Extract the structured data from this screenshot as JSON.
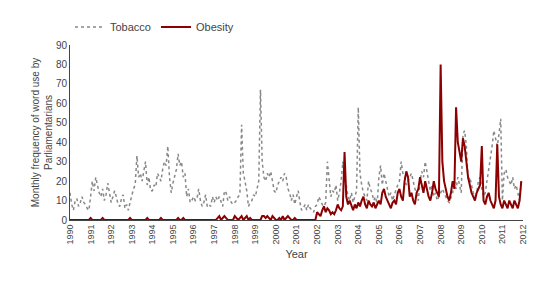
{
  "chart_data": {
    "type": "line",
    "xlabel": "Year",
    "ylabel": "Monthly frequency of word use by\nParliamentarians",
    "xlim": [
      1990,
      2012
    ],
    "xticks": [
      1990,
      1991,
      1992,
      1993,
      1994,
      1995,
      1996,
      1997,
      1998,
      1999,
      2000,
      2001,
      2002,
      2003,
      2004,
      2005,
      2006,
      2007,
      2008,
      2009,
      2010,
      2011,
      2012
    ],
    "ylim": [
      0,
      90
    ],
    "yticks": [
      0,
      10,
      20,
      30,
      40,
      50,
      60,
      70,
      80,
      90
    ],
    "grid": false,
    "legend": "upper left",
    "x": [
      1990,
      1990.083333,
      1990.166667,
      1990.25,
      1990.333333,
      1990.416667,
      1990.5,
      1990.583333,
      1990.666667,
      1990.75,
      1990.833333,
      1990.916667,
      1991,
      1991.083333,
      1991.166667,
      1991.25,
      1991.333333,
      1991.416667,
      1991.5,
      1991.583333,
      1991.666667,
      1991.75,
      1991.833333,
      1991.916667,
      1992,
      1992.083333,
      1992.166667,
      1992.25,
      1992.333333,
      1992.416667,
      1992.5,
      1992.583333,
      1992.666667,
      1992.75,
      1992.833333,
      1992.916667,
      1993,
      1993.083333,
      1993.166667,
      1993.25,
      1993.333333,
      1993.416667,
      1993.5,
      1993.583333,
      1993.666667,
      1993.75,
      1993.833333,
      1993.916667,
      1994,
      1994.083333,
      1994.166667,
      1994.25,
      1994.333333,
      1994.416667,
      1994.5,
      1994.583333,
      1994.666667,
      1994.75,
      1994.833333,
      1994.916667,
      1995,
      1995.083333,
      1995.166667,
      1995.25,
      1995.333333,
      1995.416667,
      1995.5,
      1995.583333,
      1995.666667,
      1995.75,
      1995.833333,
      1995.916667,
      1996,
      1996.083333,
      1996.166667,
      1996.25,
      1996.333333,
      1996.416667,
      1996.5,
      1996.583333,
      1996.666667,
      1996.75,
      1996.833333,
      1996.916667,
      1997,
      1997.083333,
      1997.166667,
      1997.25,
      1997.333333,
      1997.416667,
      1997.5,
      1997.583333,
      1997.666667,
      1997.75,
      1997.833333,
      1997.916667,
      1998,
      1998.083333,
      1998.166667,
      1998.25,
      1998.333333,
      1998.416667,
      1998.5,
      1998.583333,
      1998.666667,
      1998.75,
      1998.833333,
      1998.916667,
      1999,
      1999.083333,
      1999.166667,
      1999.25,
      1999.333333,
      1999.416667,
      1999.5,
      1999.583333,
      1999.666667,
      1999.75,
      1999.833333,
      1999.916667,
      2000,
      2000.083333,
      2000.166667,
      2000.25,
      2000.333333,
      2000.416667,
      2000.5,
      2000.583333,
      2000.666667,
      2000.75,
      2000.833333,
      2000.916667,
      2001,
      2001.083333,
      2001.166667,
      2001.25,
      2001.333333,
      2001.416667,
      2001.5,
      2001.583333,
      2001.666667,
      2001.75,
      2001.833333,
      2001.916667,
      2002,
      2002.083333,
      2002.166667,
      2002.25,
      2002.333333,
      2002.416667,
      2002.5,
      2002.583333,
      2002.666667,
      2002.75,
      2002.833333,
      2002.916667,
      2003,
      2003.083333,
      2003.166667,
      2003.25,
      2003.333333,
      2003.416667,
      2003.5,
      2003.583333,
      2003.666667,
      2003.75,
      2003.833333,
      2003.916667,
      2004,
      2004.083333,
      2004.166667,
      2004.25,
      2004.333333,
      2004.416667,
      2004.5,
      2004.583333,
      2004.666667,
      2004.75,
      2004.833333,
      2004.916667,
      2005,
      2005.083333,
      2005.166667,
      2005.25,
      2005.333333,
      2005.416667,
      2005.5,
      2005.583333,
      2005.666667,
      2005.75,
      2005.833333,
      2005.916667,
      2006,
      2006.083333,
      2006.166667,
      2006.25,
      2006.333333,
      2006.416667,
      2006.5,
      2006.583333,
      2006.666667,
      2006.75,
      2006.833333,
      2006.916667,
      2007,
      2007.083333,
      2007.166667,
      2007.25,
      2007.333333,
      2007.416667,
      2007.5,
      2007.583333,
      2007.666667,
      2007.75,
      2007.833333,
      2007.916667,
      2008,
      2008.083333,
      2008.166667,
      2008.25,
      2008.333333,
      2008.416667,
      2008.5,
      2008.583333,
      2008.666667,
      2008.75,
      2008.833333,
      2008.916667,
      2009,
      2009.083333,
      2009.166667,
      2009.25,
      2009.333333,
      2009.416667,
      2009.5,
      2009.583333,
      2009.666667,
      2009.75,
      2009.833333,
      2009.916667,
      2010,
      2010.083333,
      2010.166667,
      2010.25,
      2010.333333,
      2010.416667,
      2010.5,
      2010.583333,
      2010.666667,
      2010.75,
      2010.833333,
      2010.916667,
      2011,
      2011.083333,
      2011.166667,
      2011.25,
      2011.333333,
      2011.416667,
      2011.5,
      2011.583333,
      2011.666667,
      2011.75,
      2011.833333,
      2011.916667
    ],
    "series": [
      {
        "name": "Tobacco",
        "color": "#888888",
        "line_style": "dotted",
        "values": [
          14,
          8,
          5,
          10,
          11,
          7,
          9,
          12,
          9,
          8,
          6,
          5,
          12,
          20,
          15,
          22,
          18,
          14,
          12,
          16,
          10,
          13,
          19,
          14,
          9,
          12,
          15,
          12,
          8,
          7,
          11,
          13,
          6,
          8,
          5,
          9,
          13,
          16,
          18,
          33,
          22,
          24,
          20,
          25,
          30,
          18,
          22,
          15,
          15,
          18,
          17,
          24,
          22,
          20,
          26,
          30,
          28,
          38,
          22,
          14,
          19,
          22,
          26,
          34,
          28,
          30,
          22,
          24,
          12,
          16,
          9,
          10,
          12,
          10,
          11,
          16,
          10,
          7,
          9,
          13,
          7,
          8,
          7,
          12,
          9,
          12,
          10,
          12,
          9,
          7,
          15,
          14,
          10,
          12,
          9,
          8,
          9,
          10,
          12,
          13,
          49,
          24,
          20,
          15,
          7,
          9,
          10,
          13,
          12,
          16,
          20,
          67,
          30,
          22,
          20,
          24,
          22,
          25,
          20,
          15,
          14,
          18,
          20,
          22,
          20,
          24,
          22,
          16,
          14,
          10,
          13,
          8,
          12,
          15,
          9,
          5,
          6,
          8,
          5,
          8,
          6,
          5,
          4,
          7,
          8,
          12,
          10,
          8,
          7,
          9,
          30,
          22,
          12,
          15,
          14,
          18,
          10,
          14,
          20,
          30,
          22,
          18,
          12,
          10,
          14,
          9,
          12,
          15,
          58,
          24,
          18,
          14,
          12,
          10,
          20,
          16,
          14,
          10,
          12,
          8,
          22,
          28,
          18,
          24,
          20,
          16,
          12,
          14,
          10,
          13,
          16,
          18,
          20,
          30,
          24,
          22,
          18,
          20,
          22,
          24,
          20,
          16,
          14,
          10,
          20,
          25,
          22,
          30,
          25,
          20,
          15,
          18,
          12,
          14,
          10,
          12,
          14,
          16,
          14,
          12,
          10,
          9,
          12,
          14,
          20,
          16,
          22,
          18,
          14,
          44,
          46,
          38,
          20,
          22,
          18,
          14,
          12,
          14,
          20,
          22,
          16,
          12,
          14,
          20,
          24,
          30,
          38,
          46,
          42,
          38,
          44,
          52,
          10,
          24,
          26,
          22,
          20,
          18,
          22,
          16,
          18,
          14,
          10,
          20
        ]
      },
      {
        "name": "Obesity",
        "color": "#8B0000",
        "line_style": "solid",
        "values": [
          0,
          0,
          0,
          0,
          0,
          0,
          0,
          0,
          0,
          0,
          0,
          0,
          1,
          0,
          0,
          0,
          0,
          0,
          0,
          1,
          0,
          0,
          0,
          0,
          0,
          0,
          0,
          0,
          0,
          0,
          0,
          0,
          0,
          0,
          0,
          1,
          0,
          0,
          0,
          0,
          0,
          0,
          0,
          0,
          0,
          1,
          0,
          0,
          0,
          0,
          0,
          0,
          0,
          1,
          0,
          0,
          0,
          0,
          0,
          0,
          0,
          0,
          0,
          1,
          0,
          0,
          1,
          0,
          0,
          0,
          0,
          0,
          0,
          0,
          0,
          0,
          0,
          0,
          0,
          0,
          0,
          0,
          0,
          0,
          0,
          0,
          1,
          2,
          0,
          1,
          2,
          1,
          0,
          0,
          0,
          0,
          2,
          1,
          0,
          1,
          2,
          0,
          1,
          2,
          0,
          1,
          0,
          0,
          0,
          0,
          0,
          0,
          2,
          2,
          1,
          2,
          1,
          0,
          2,
          1,
          0,
          0,
          1,
          0,
          2,
          0,
          1,
          2,
          1,
          0,
          0,
          1,
          0,
          0,
          0,
          0,
          0,
          0,
          0,
          0,
          0,
          0,
          0,
          0,
          4,
          3,
          2,
          5,
          7,
          4,
          6,
          5,
          3,
          4,
          3,
          5,
          8,
          6,
          5,
          7,
          35,
          12,
          8,
          10,
          7,
          5,
          8,
          6,
          9,
          7,
          10,
          12,
          8,
          6,
          10,
          8,
          7,
          9,
          6,
          8,
          10,
          8,
          14,
          16,
          12,
          10,
          8,
          6,
          9,
          10,
          8,
          14,
          16,
          12,
          10,
          20,
          25,
          22,
          12,
          14,
          10,
          8,
          14,
          16,
          22,
          18,
          14,
          20,
          16,
          12,
          10,
          14,
          20,
          16,
          14,
          12,
          80,
          30,
          20,
          16,
          12,
          10,
          14,
          20,
          16,
          58,
          40,
          35,
          30,
          42,
          38,
          30,
          22,
          18,
          14,
          12,
          10,
          14,
          16,
          18,
          38,
          10,
          8,
          12,
          14,
          10,
          8,
          6,
          10,
          39,
          12,
          8,
          6,
          10,
          8,
          6,
          10,
          8,
          6,
          10,
          8,
          6,
          10,
          20
        ]
      }
    ]
  }
}
